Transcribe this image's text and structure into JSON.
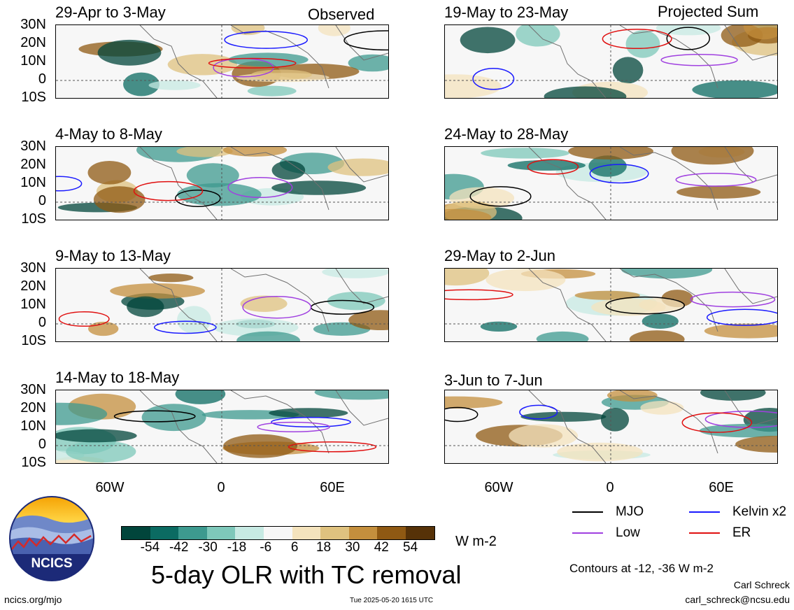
{
  "panels_left": [
    {
      "title": "29-Apr to 3-May",
      "corner": "Observed"
    },
    {
      "title": "4-May to 8-May",
      "corner": ""
    },
    {
      "title": "9-May to 13-May",
      "corner": ""
    },
    {
      "title": "14-May to 18-May",
      "corner": ""
    }
  ],
  "panels_right": [
    {
      "title": "19-May to 23-May",
      "corner": "Projected Sum"
    },
    {
      "title": "24-May to 28-May",
      "corner": ""
    },
    {
      "title": "29-May to 2-Jun",
      "corner": ""
    },
    {
      "title": "3-Jun to 7-Jun",
      "corner": ""
    }
  ],
  "lat_labels": [
    "30N",
    "20N",
    "10N",
    "0",
    "10S"
  ],
  "lon_labels": [
    "60W",
    "0",
    "60E"
  ],
  "colorbar": {
    "colors": [
      "#01453b",
      "#0b6b62",
      "#3d9a8f",
      "#7ec8ba",
      "#c7eae3",
      "#f7f7f7",
      "#f4e3bd",
      "#dfc27f",
      "#c48f3d",
      "#8f5913",
      "#563208"
    ],
    "ticks": [
      "-54",
      "-42",
      "-30",
      "-18",
      "-6",
      "6",
      "18",
      "30",
      "42",
      "54"
    ],
    "units": "W m-2"
  },
  "title": "5-day OLR with TC removal",
  "legend": [
    {
      "label": "MJO",
      "color": "#000000"
    },
    {
      "label": "Kelvin x2",
      "color": "#1a1aff"
    },
    {
      "label": "Low",
      "color": "#a040e0"
    },
    {
      "label": "ER",
      "color": "#e01010"
    }
  ],
  "contours_note": "Contours at -12, -36 W m-2",
  "credit_name": "Carl Schreck",
  "credit_email": "carl_schreck@ncsu.edu",
  "site": "ncics.org/mjo",
  "timestamp": "Tue 2025-05-20 1615 UTC",
  "logo_text": "NCICS"
}
